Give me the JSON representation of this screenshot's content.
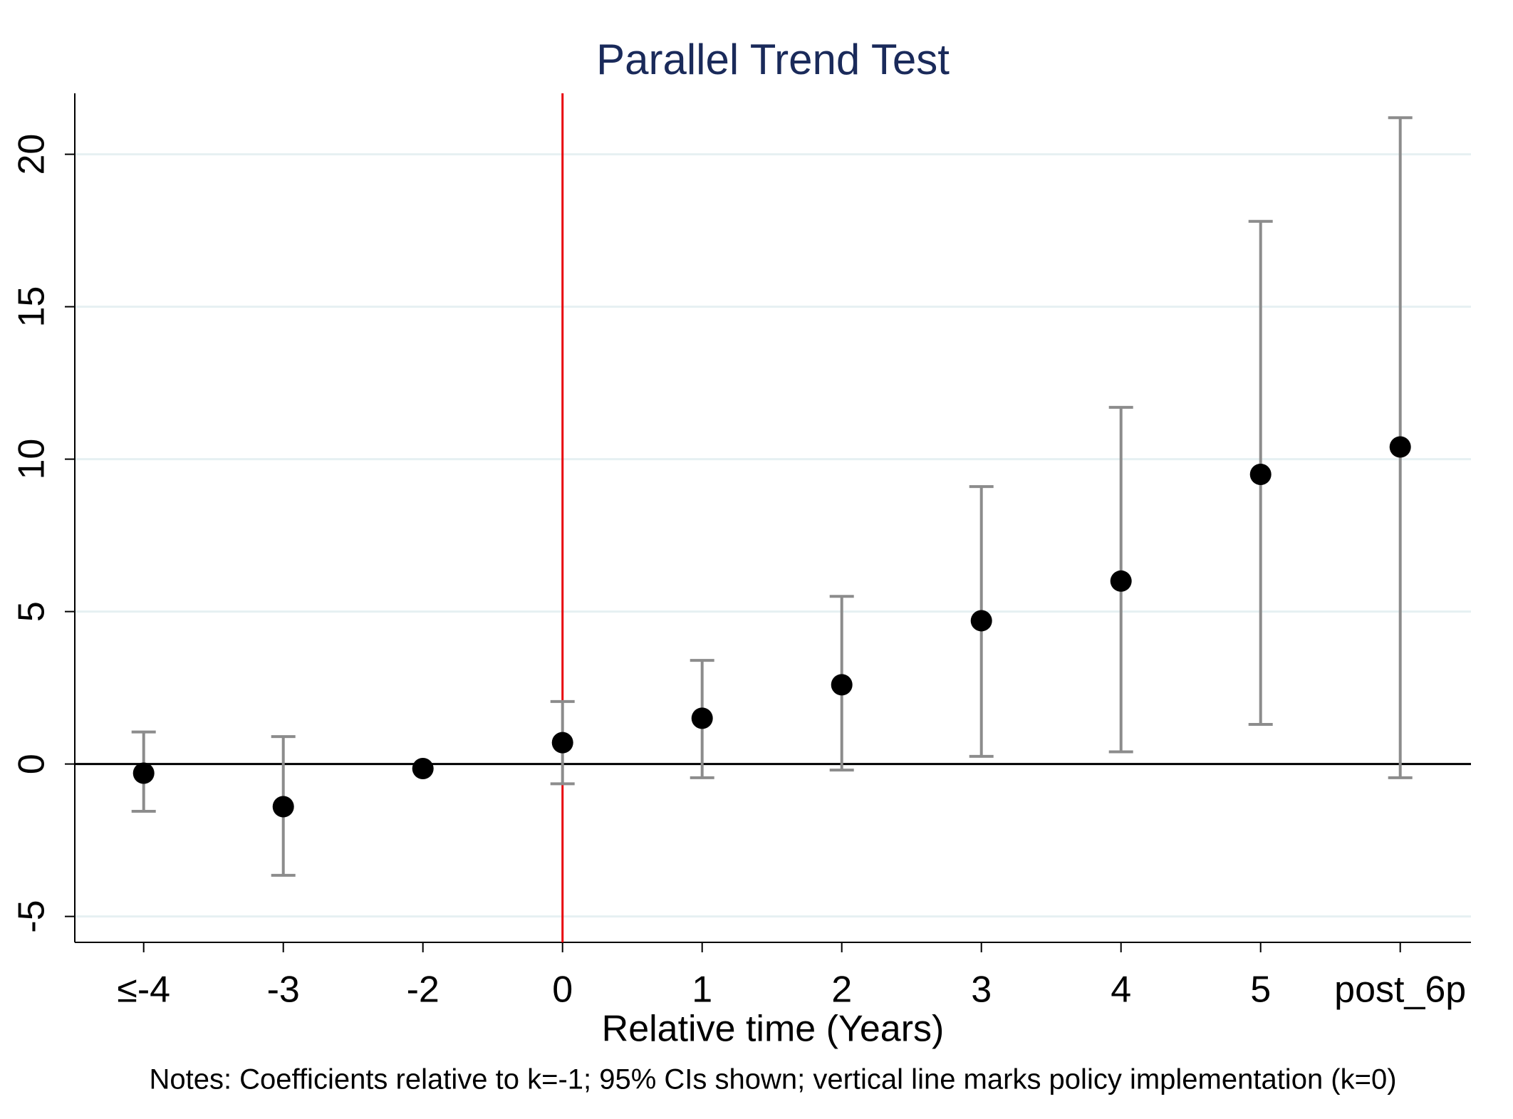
{
  "chart_data": {
    "type": "errorbar",
    "title": "Parallel Trend Test",
    "x_label": "Relative time (Years)",
    "notes": "Notes: Coefficients relative to k=-1; 95% CIs shown; vertical line marks policy implementation (k=0)",
    "categories": [
      "≤-4",
      "-3",
      "-2",
      "0",
      "1",
      "2",
      "3",
      "4",
      "5",
      "post_6p"
    ],
    "values": [
      -0.3,
      -1.4,
      -0.15,
      0.7,
      1.5,
      2.6,
      4.7,
      6.0,
      9.5,
      10.4
    ],
    "lower": [
      -1.55,
      -3.65,
      null,
      -0.65,
      -0.45,
      -0.2,
      0.25,
      0.4,
      1.3,
      -0.45
    ],
    "upper": [
      1.05,
      0.9,
      null,
      2.05,
      3.4,
      5.5,
      9.1,
      11.7,
      17.8,
      21.2
    ],
    "color": "#000000",
    "error_color": "#8c8c8c",
    "ylim": [
      -5.85,
      22
    ],
    "yticks": [
      -5,
      0,
      5,
      10,
      15,
      20
    ],
    "grid": true,
    "grid_color": "#e6f0f2",
    "vline_category": 3,
    "vline_color": "#e8000b",
    "hline_value": 0,
    "hline_color": "#000000"
  }
}
